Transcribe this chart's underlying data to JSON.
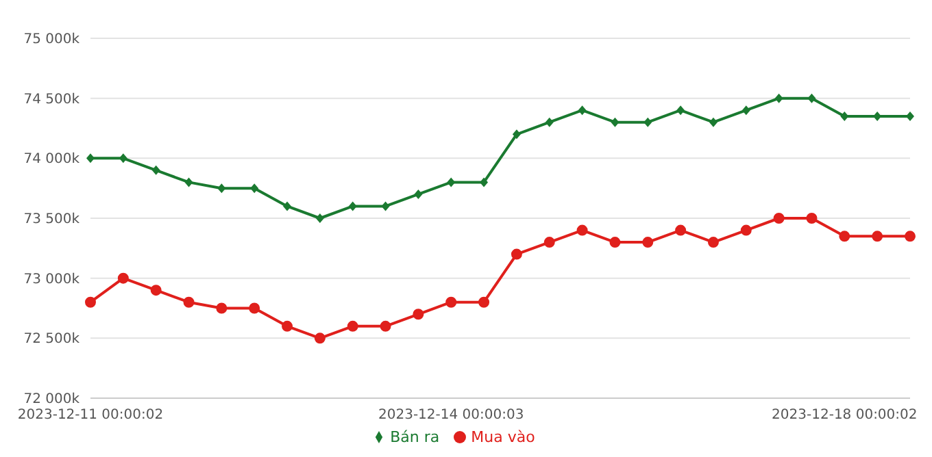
{
  "chart_data": {
    "type": "line",
    "categories": [
      "2023-12-11 00:00:02",
      null,
      null,
      null,
      null,
      null,
      null,
      null,
      null,
      null,
      null,
      "2023-12-14 00:00:03",
      null,
      null,
      null,
      null,
      null,
      null,
      null,
      null,
      null,
      null,
      null,
      "2023-12-18 00:00:02",
      null,
      null
    ],
    "series": [
      {
        "name": "Mua vào",
        "color": "#e0201c",
        "marker": "circle",
        "values": [
          72800,
          73000,
          72900,
          72800,
          72750,
          72750,
          72600,
          72500,
          72600,
          72600,
          72700,
          72800,
          72800,
          73200,
          73300,
          73400,
          73300,
          73300,
          73400,
          73300,
          73400,
          73500,
          73500,
          73350,
          73350,
          73350
        ]
      },
      {
        "name": "Bán ra",
        "color": "#1a7a30",
        "marker": "diamond",
        "values": [
          74000,
          74000,
          73900,
          73800,
          73750,
          73750,
          73600,
          73500,
          73600,
          73600,
          73700,
          73800,
          73800,
          74200,
          74300,
          74400,
          74300,
          74300,
          74400,
          74300,
          74400,
          74500,
          74500,
          74350,
          74350,
          74350
        ]
      }
    ],
    "ylim": [
      72000,
      75000
    ],
    "yticks": [
      {
        "value": 72000,
        "label": "72 000k"
      },
      {
        "value": 72500,
        "label": "72 500k"
      },
      {
        "value": 73000,
        "label": "73 000k"
      },
      {
        "value": 73500,
        "label": "73 500k"
      },
      {
        "value": 74000,
        "label": "74 000k"
      },
      {
        "value": 74500,
        "label": "74 500k"
      },
      {
        "value": 75000,
        "label": "75 000k"
      }
    ],
    "grid": "y",
    "legend": "bottom"
  }
}
